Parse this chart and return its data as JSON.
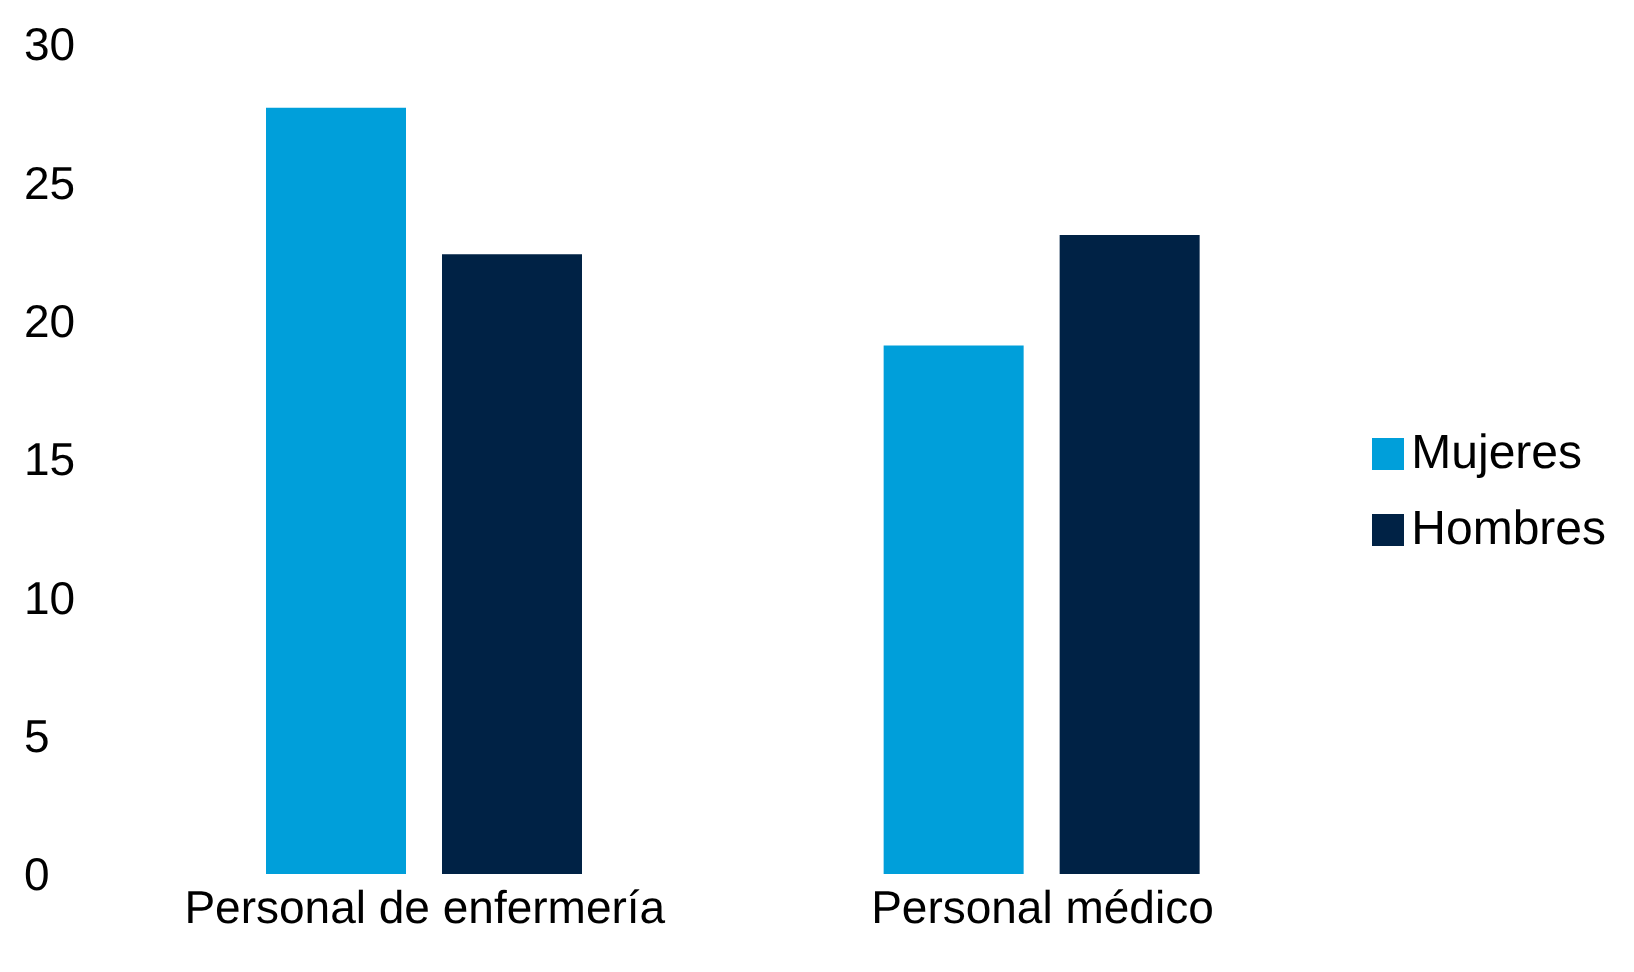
{
  "chart_data": {
    "type": "bar",
    "categories": [
      "Personal de enfermería",
      "Personal médico"
    ],
    "series": [
      {
        "name": "Mujeres",
        "color": "#009fda",
        "values": [
          27.7,
          19.1
        ]
      },
      {
        "name": "Hombres",
        "color": "#002245",
        "values": [
          22.4,
          23.1
        ]
      }
    ],
    "ylim": [
      0,
      30
    ],
    "yticks": [
      0,
      5,
      10,
      15,
      20,
      25,
      30
    ],
    "grid": false,
    "legend": "right"
  }
}
